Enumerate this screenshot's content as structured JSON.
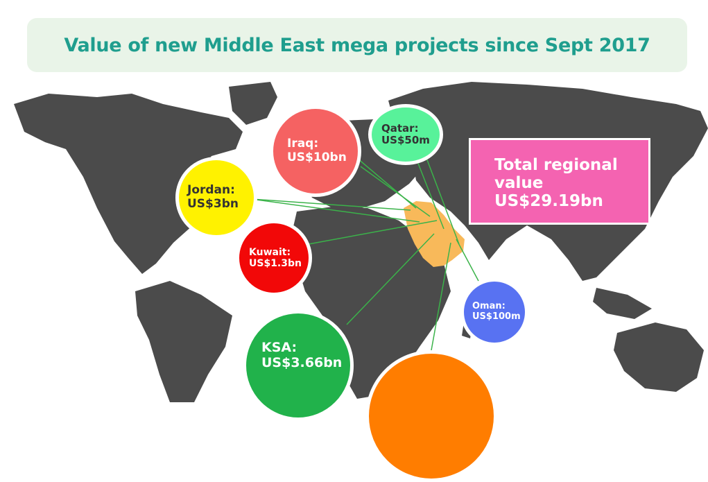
{
  "title": "Value of new Middle East mega projects since Sept 2017",
  "total": {
    "lines": [
      "Total regional",
      "value",
      "US$29.19bn"
    ],
    "color": "#f463b1"
  },
  "countries": [
    {
      "key": "iraq",
      "name": "Iraq:",
      "value": "US$10bn",
      "color": "#f56262",
      "text_color": "#ffffff"
    },
    {
      "key": "qatar",
      "name": "Qatar:",
      "value": "US$50m",
      "color": "#58f29a",
      "text_color": "#333333"
    },
    {
      "key": "jordan",
      "name": "Jordan:",
      "value": "US$3bn",
      "color": "#fff200",
      "text_color": "#333333"
    },
    {
      "key": "kuwait",
      "name": "Kuwait:",
      "value": "US$1.3bn",
      "color": "#f20808",
      "text_color": "#ffffff"
    },
    {
      "key": "oman",
      "name": "Oman:",
      "value": "US$100m",
      "color": "#5872f2",
      "text_color": "#ffffff"
    },
    {
      "key": "ksa",
      "name": "KSA:",
      "value": "US$3.66bn",
      "color": "#21b24b",
      "text_color": "#ffffff"
    },
    {
      "key": "uae",
      "name": "",
      "value": "",
      "color": "#ff7d00",
      "text_color": "#ffffff"
    }
  ],
  "colors": {
    "land": "#4b4b4b",
    "middle_east": "#f8b95a",
    "connector": "#3bb34a",
    "title_bg": "#e9f4e8",
    "title_text": "#1f9e8e"
  }
}
